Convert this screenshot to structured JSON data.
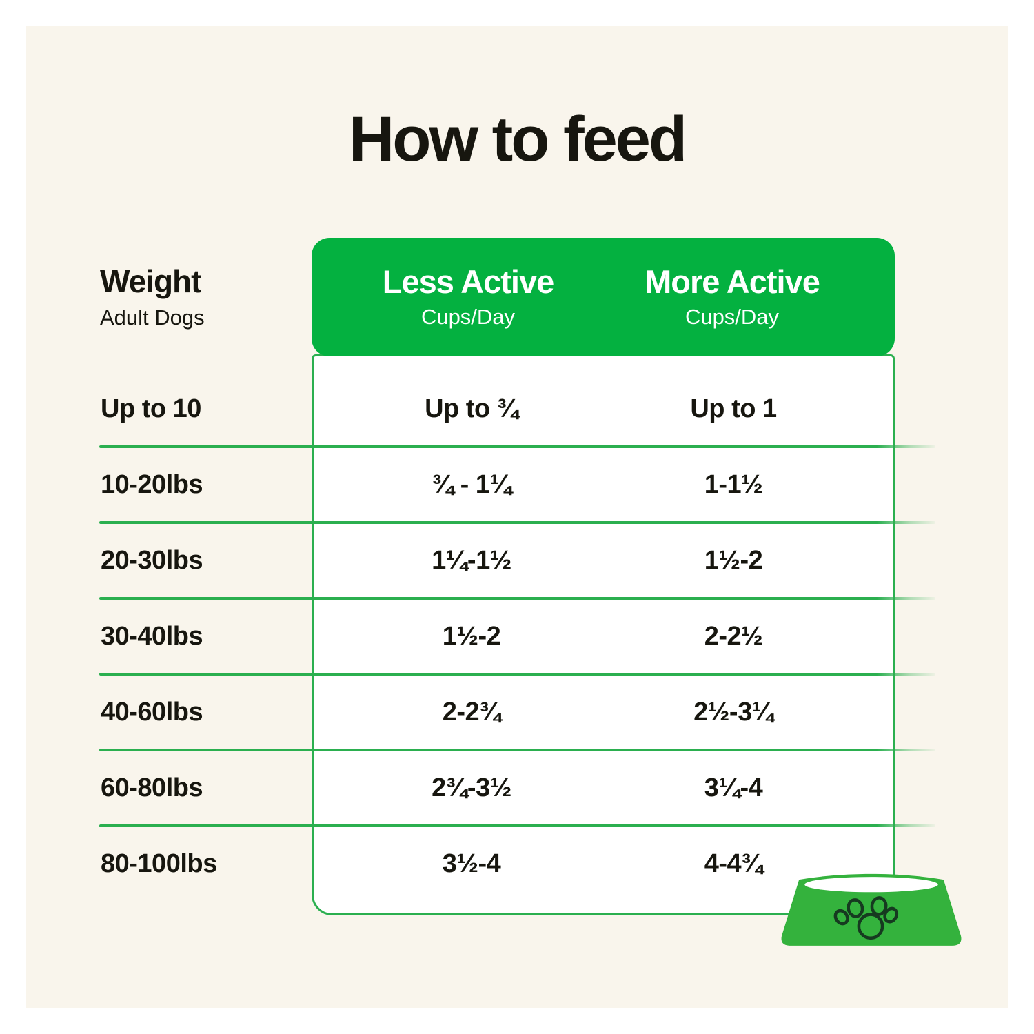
{
  "title": "How to feed",
  "colors": {
    "green": "#04B140",
    "line_green": "#2BAF4F",
    "bowl_green": "#34B23D",
    "paw_outline": "#163A20",
    "cream": "#F9F5EC",
    "text": "#17160F",
    "header_text": "#FFFFFF"
  },
  "weight_header": {
    "label": "Weight",
    "sublabel": "Adult Dogs"
  },
  "columns": [
    {
      "label": "Less Active",
      "sublabel": "Cups/Day"
    },
    {
      "label": "More Active",
      "sublabel": "Cups/Day"
    }
  ],
  "rows": [
    {
      "weight": "Up to 10",
      "less_active": "Up to ¾",
      "more_active": "Up to 1"
    },
    {
      "weight": "10-20lbs",
      "less_active": "¾ - 1¼",
      "more_active": "1-1½"
    },
    {
      "weight": "20-30lbs",
      "less_active": "1¼-1½",
      "more_active": "1½-2"
    },
    {
      "weight": "30-40lbs",
      "less_active": "1½-2",
      "more_active": "2-2½"
    },
    {
      "weight": "40-60lbs",
      "less_active": "2-2¾",
      "more_active": "2½-3¼"
    },
    {
      "weight": "60-80lbs",
      "less_active": "2¾-3½",
      "more_active": "3¼-4"
    },
    {
      "weight": "80-100lbs",
      "less_active": "3½-4",
      "more_active": "4-4¾"
    }
  ],
  "icons": {
    "bowl": "dog-bowl-icon",
    "paw": "paw-print-icon"
  },
  "chart_data": {
    "type": "table",
    "title": "How to feed",
    "columns": [
      "Weight (Adult Dogs)",
      "Less Active Cups/Day",
      "More Active Cups/Day"
    ],
    "rows": [
      [
        "Up to 10",
        "Up to ¾",
        "Up to 1"
      ],
      [
        "10-20lbs",
        "¾ - 1¼",
        "1-1½"
      ],
      [
        "20-30lbs",
        "1¼-1½",
        "1½-2"
      ],
      [
        "30-40lbs",
        "1½-2",
        "2-2½"
      ],
      [
        "40-60lbs",
        "2-2¾",
        "2½-3¼"
      ],
      [
        "60-80lbs",
        "2¾-3½",
        "3¼-4"
      ],
      [
        "80-100lbs",
        "3½-4",
        "4-4¾"
      ]
    ]
  }
}
